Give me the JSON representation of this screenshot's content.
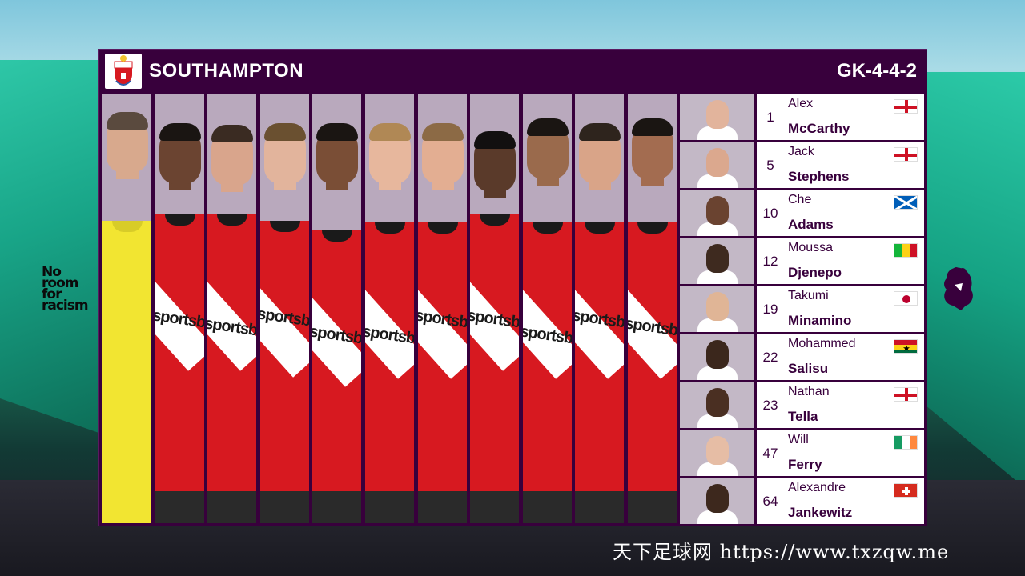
{
  "team": {
    "name": "SOUTHAMPTON",
    "formation": "GK-4-4-2"
  },
  "campaign": {
    "lines": [
      "No",
      "room",
      "for",
      "racism"
    ]
  },
  "sponsor": "sportsbet",
  "starters": [
    {
      "role": "goalkeeper",
      "skin": "#d8a98d",
      "hair": "#5a4a3e",
      "kit": "gk"
    },
    {
      "role": "outfield",
      "skin": "#6b4431",
      "hair": "#1a1512",
      "kit": "home"
    },
    {
      "role": "outfield",
      "skin": "#d9a58c",
      "hair": "#3a2b22",
      "kit": "home"
    },
    {
      "role": "outfield",
      "skin": "#e2b49c",
      "hair": "#6a5030",
      "kit": "home"
    },
    {
      "role": "outfield",
      "skin": "#7a4e36",
      "hair": "#1a1512",
      "kit": "home"
    },
    {
      "role": "outfield",
      "skin": "#e7b79d",
      "hair": "#b08855",
      "kit": "home"
    },
    {
      "role": "outfield",
      "skin": "#e3ae92",
      "hair": "#8c6a45",
      "kit": "home"
    },
    {
      "role": "outfield",
      "skin": "#5a3a2a",
      "hair": "#121010",
      "kit": "home"
    },
    {
      "role": "outfield",
      "skin": "#9a6a4c",
      "hair": "#1a1512",
      "kit": "home"
    },
    {
      "role": "outfield",
      "skin": "#d9a488",
      "hair": "#2e241d",
      "kit": "home"
    },
    {
      "role": "outfield",
      "skin": "#a36c50",
      "hair": "#1a1512",
      "kit": "home"
    }
  ],
  "subs": [
    {
      "number": "1",
      "first": "Alex",
      "last": "McCarthy",
      "flag": "england",
      "skin": "#e2b49c"
    },
    {
      "number": "5",
      "first": "Jack",
      "last": "Stephens",
      "flag": "england",
      "skin": "#dba88e"
    },
    {
      "number": "10",
      "first": "Che",
      "last": "Adams",
      "flag": "scotland",
      "skin": "#6a4330"
    },
    {
      "number": "12",
      "first": "Moussa",
      "last": "Djenepo",
      "flag": "mali",
      "skin": "#3e2a1f"
    },
    {
      "number": "19",
      "first": "Takumi",
      "last": "Minamino",
      "flag": "japan",
      "skin": "#e0b596"
    },
    {
      "number": "22",
      "first": "Mohammed",
      "last": "Salisu",
      "flag": "ghana",
      "skin": "#3b271c"
    },
    {
      "number": "23",
      "first": "Nathan",
      "last": "Tella",
      "flag": "england",
      "skin": "#4a2f22"
    },
    {
      "number": "47",
      "first": "Will",
      "last": "Ferry",
      "flag": "ireland",
      "skin": "#e6bda5"
    },
    {
      "number": "64",
      "first": "Alexandre",
      "last": "Jankewitz",
      "flag": "switzerland",
      "skin": "#3d281d"
    }
  ],
  "watermark": "天下足球网 https://www.txzqw.me"
}
